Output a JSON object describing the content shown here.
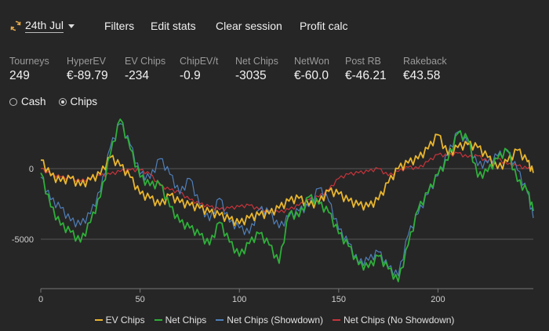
{
  "toolbar": {
    "date": "24th Jul",
    "buttons": [
      "Filters",
      "Edit stats",
      "Clear session",
      "Profit calc"
    ]
  },
  "stats": [
    {
      "label": "Tourneys",
      "value": "249"
    },
    {
      "label": "HyperEV",
      "value": "€-89.79"
    },
    {
      "label": "EV Chips",
      "value": "-234"
    },
    {
      "label": "ChipEV/t",
      "value": "-0.9"
    },
    {
      "label": "Net Chips",
      "value": "-3035"
    },
    {
      "label": "NetWon",
      "value": "€-60.0"
    },
    {
      "label": "Post RB",
      "value": "€-46.21"
    },
    {
      "label": "Rakeback",
      "value": "€43.58"
    }
  ],
  "mode": {
    "options": [
      "Cash",
      "Chips"
    ],
    "selected": "Chips"
  },
  "colors": {
    "ev": "#e8b52e",
    "net": "#2fae3a",
    "showdown": "#4f7fba",
    "noshowdown": "#c8343c"
  },
  "chart_data": {
    "type": "line",
    "x_ticks": [
      "0",
      "50",
      "100",
      "150",
      "200"
    ],
    "y_ticks": [
      "0",
      "-5000"
    ],
    "xlim": [
      0,
      248
    ],
    "ylim": [
      -8500,
      3500
    ],
    "legend_position": "bottom",
    "series": [
      {
        "name": "EV Chips",
        "key": "ev",
        "x": [
          0,
          5,
          10,
          15,
          20,
          25,
          30,
          35,
          40,
          45,
          50,
          55,
          60,
          65,
          70,
          75,
          80,
          85,
          90,
          95,
          100,
          105,
          110,
          115,
          120,
          125,
          130,
          135,
          140,
          145,
          150,
          155,
          160,
          165,
          170,
          175,
          180,
          185,
          190,
          195,
          200,
          205,
          210,
          215,
          220,
          225,
          230,
          235,
          240,
          245,
          248
        ],
        "y": [
          600,
          -500,
          -900,
          -700,
          -1200,
          -800,
          -400,
          800,
          200,
          -600,
          -1800,
          -2100,
          -2600,
          -1900,
          -2400,
          -2600,
          -2800,
          -3100,
          -3300,
          -3600,
          -3900,
          -3500,
          -3300,
          -3200,
          -2800,
          -2300,
          -2100,
          -2600,
          -2400,
          -1600,
          -1800,
          -2300,
          -2600,
          -2700,
          -2200,
          -1000,
          0,
          400,
          700,
          1400,
          2400,
          1000,
          1500,
          1700,
          1500,
          800,
          0,
          500,
          1300,
          500,
          -300
        ]
      },
      {
        "name": "Net Chips",
        "key": "net",
        "x": [
          0,
          5,
          10,
          15,
          20,
          25,
          30,
          35,
          40,
          45,
          50,
          55,
          60,
          65,
          70,
          75,
          80,
          85,
          90,
          95,
          100,
          105,
          110,
          115,
          120,
          125,
          130,
          135,
          140,
          145,
          150,
          155,
          160,
          165,
          170,
          175,
          180,
          185,
          190,
          195,
          200,
          205,
          210,
          215,
          220,
          225,
          230,
          235,
          240,
          245,
          248
        ],
        "y": [
          -300,
          -2700,
          -4000,
          -4500,
          -5200,
          -3800,
          -2000,
          1000,
          3500,
          1400,
          -600,
          -1200,
          -1100,
          -2700,
          -3800,
          -4200,
          -4700,
          -5400,
          -3800,
          -5200,
          -6200,
          -5300,
          -4600,
          -5400,
          -6700,
          -3200,
          -3400,
          -2000,
          -2500,
          -3100,
          -4600,
          -5500,
          -6800,
          -7000,
          -6200,
          -7100,
          -8000,
          -5400,
          -2900,
          -1700,
          -400,
          600,
          2500,
          2100,
          -600,
          -200,
          700,
          1300,
          -900,
          -1600,
          -3000
        ]
      },
      {
        "name": "Net Chips (Showdown)",
        "key": "showdown",
        "x": [
          0,
          5,
          10,
          15,
          20,
          25,
          30,
          35,
          40,
          45,
          50,
          55,
          60,
          65,
          70,
          75,
          80,
          85,
          90,
          95,
          100,
          105,
          110,
          115,
          120,
          125,
          130,
          135,
          140,
          145,
          150,
          155,
          160,
          165,
          170,
          175,
          180,
          185,
          190,
          195,
          200,
          205,
          210,
          215,
          220,
          225,
          230,
          235,
          240,
          245,
          248
        ],
        "y": [
          -600,
          -2200,
          -2800,
          -3700,
          -4000,
          -3200,
          -1600,
          1500,
          3200,
          1700,
          -400,
          -700,
          700,
          -400,
          -1800,
          -700,
          -2600,
          -3700,
          -2100,
          -3800,
          -4200,
          -4600,
          -2900,
          -3100,
          -4200,
          -3400,
          -3000,
          -2700,
          -1400,
          -2300,
          -4300,
          -5300,
          -6700,
          -6500,
          -5900,
          -7000,
          -7600,
          -4700,
          -3200,
          -1800,
          -500,
          1000,
          2600,
          1800,
          200,
          400,
          900,
          1200,
          -100,
          -1700,
          -3500
        ]
      },
      {
        "name": "Net Chips (No Showdown)",
        "key": "noshowdown",
        "x": [
          0,
          5,
          10,
          15,
          20,
          25,
          30,
          35,
          40,
          45,
          50,
          55,
          60,
          65,
          70,
          75,
          80,
          85,
          90,
          95,
          100,
          105,
          110,
          115,
          120,
          125,
          130,
          135,
          140,
          145,
          150,
          155,
          160,
          165,
          170,
          175,
          180,
          185,
          190,
          195,
          200,
          205,
          210,
          215,
          220,
          225,
          230,
          235,
          240,
          245,
          248
        ],
        "y": [
          0,
          -400,
          -600,
          -700,
          -900,
          -700,
          -500,
          -400,
          -200,
          -100,
          -100,
          -400,
          -1200,
          -1500,
          -1700,
          -2200,
          -2500,
          -2700,
          -2900,
          -2800,
          -2700,
          -2600,
          -2900,
          -3000,
          -3100,
          -2900,
          -2600,
          -2200,
          -2000,
          -1500,
          -700,
          -400,
          -300,
          -200,
          0,
          -500,
          -200,
          100,
          0,
          500,
          1000,
          900,
          1100,
          800,
          900,
          500,
          700,
          300,
          200,
          0,
          -100
        ]
      }
    ]
  },
  "legend": [
    "EV Chips",
    "Net Chips",
    "Net Chips (Showdown)",
    "Net Chips (No Showdown)"
  ]
}
